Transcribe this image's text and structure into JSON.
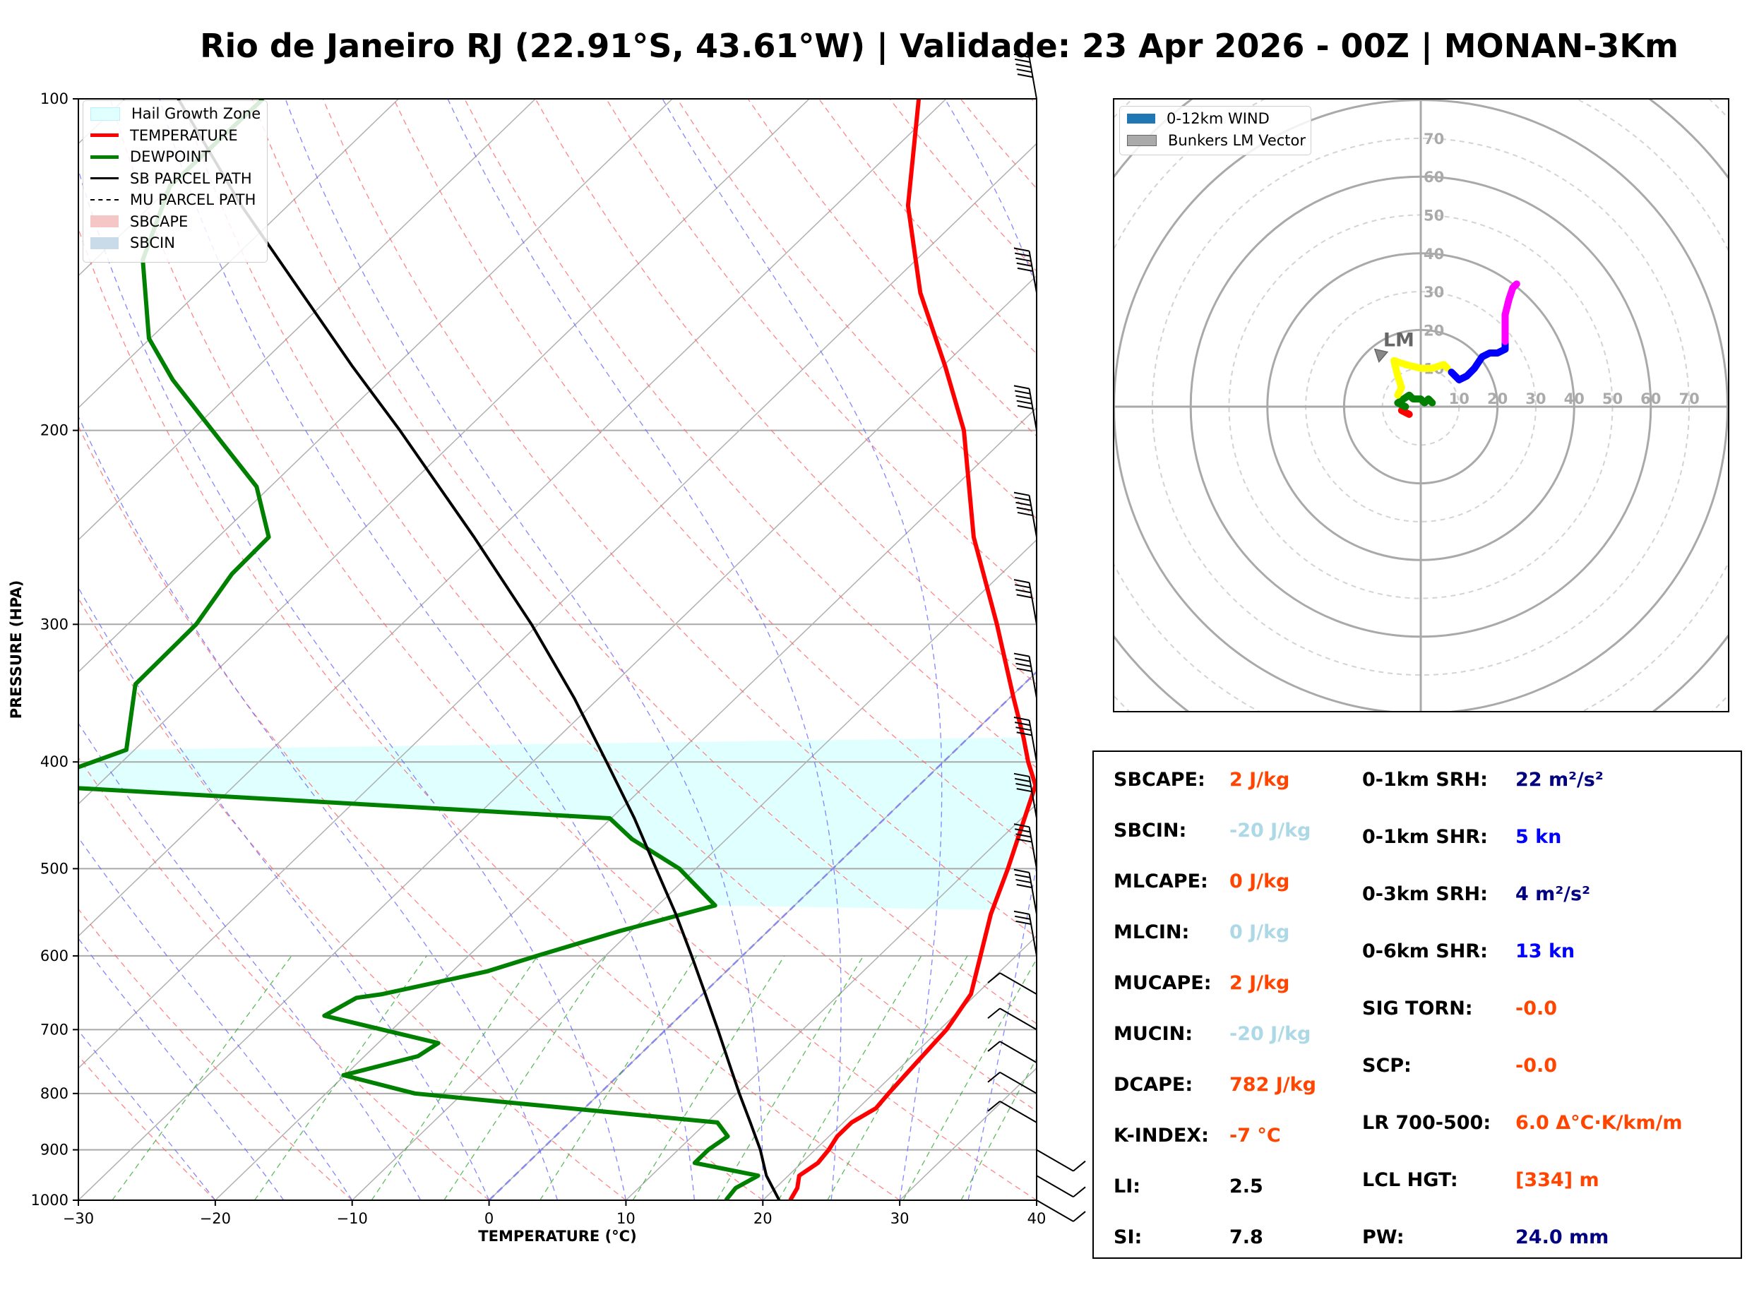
{
  "title": "Rio de Janeiro RJ (22.91°S, 43.61°W) | Validade: 23 Apr 2026 - 00Z | MONAN-3Km",
  "chart_data": [
    {
      "type": "line",
      "chart": "skew-t log-p",
      "xlabel": "TEMPERATURE (°C)",
      "ylabel": "PRESSURE (HPA)",
      "xlim": [
        -30,
        40
      ],
      "ylim": [
        1000,
        100
      ],
      "y_scale": "log",
      "x_ticks": [
        "−30",
        "−20",
        "−10",
        "0",
        "10",
        "20",
        "30",
        "40"
      ],
      "y_ticks": [
        "1000",
        "900",
        "800",
        "700",
        "600",
        "500",
        "400",
        "300",
        "200",
        "100"
      ],
      "legend": {
        "position": "top-left",
        "entries": [
          {
            "label": "Hail Growth Zone",
            "color": "#e0ffff"
          },
          {
            "label": "TEMPERATURE",
            "color": "#ff0000"
          },
          {
            "label": "DEWPOINT",
            "color": "#008000"
          },
          {
            "label": "SB PARCEL PATH",
            "color": "#000000"
          },
          {
            "label": "MU PARCEL PATH",
            "color": "#000000",
            "dashed": true
          },
          {
            "label": "SBCAPE",
            "color": "#f4c6c6"
          },
          {
            "label": "SBCIN",
            "color": "#c9dbe9"
          }
        ]
      },
      "series": [
        {
          "name": "TEMPERATURE",
          "color": "#ff0000",
          "points": [
            [
              1000,
              22.0
            ],
            [
              975,
              21.6
            ],
            [
              950,
              20.8
            ],
            [
              925,
              21.2
            ],
            [
              900,
              21.0
            ],
            [
              875,
              20.6
            ],
            [
              850,
              20.6
            ],
            [
              825,
              21.3
            ],
            [
              800,
              21.1
            ],
            [
              750,
              20.8
            ],
            [
              700,
              20.5
            ],
            [
              650,
              19.6
            ],
            [
              600,
              17.4
            ],
            [
              550,
              15.0
            ],
            [
              500,
              12.8
            ],
            [
              450,
              10.2
            ],
            [
              420,
              8.5
            ],
            [
              400,
              6.2
            ],
            [
              380,
              4.0
            ],
            [
              350,
              0.3
            ],
            [
              300,
              -6.5
            ],
            [
              250,
              -14.8
            ],
            [
              200,
              -23.6
            ],
            [
              175,
              -29.8
            ],
            [
              150,
              -37.2
            ],
            [
              125,
              -44.7
            ],
            [
              100,
              -52.0
            ]
          ]
        },
        {
          "name": "DEWPOINT",
          "color": "#008000",
          "points": [
            [
              1000,
              17.3
            ],
            [
              975,
              17.1
            ],
            [
              950,
              17.8
            ],
            [
              925,
              12.2
            ],
            [
              900,
              12.2
            ],
            [
              875,
              12.6
            ],
            [
              850,
              10.8
            ],
            [
              800,
              -13.5
            ],
            [
              770,
              -20.1
            ],
            [
              740,
              -16.1
            ],
            [
              720,
              -15.6
            ],
            [
              680,
              -26.0
            ],
            [
              655,
              -25.0
            ],
            [
              650,
              -23.4
            ],
            [
              620,
              -17.5
            ],
            [
              600,
              -15.0
            ],
            [
              570,
              -10.9
            ],
            [
              540,
              -5.8
            ],
            [
              500,
              -11.2
            ],
            [
              470,
              -16.9
            ],
            [
              450,
              -20.1
            ],
            [
              420,
              -65.1
            ],
            [
              390,
              -60.6
            ],
            [
              340,
              -64.9
            ],
            [
              300,
              -65.0
            ],
            [
              270,
              -66.2
            ],
            [
              250,
              -66.3
            ],
            [
              225,
              -71.0
            ],
            [
              200,
              -78.5
            ],
            [
              180,
              -85.2
            ],
            [
              165,
              -90.1
            ],
            [
              140,
              -96.5
            ],
            [
              120,
              -100.1
            ],
            [
              100,
              -99.9
            ]
          ]
        },
        {
          "name": "SB PARCEL PATH",
          "color": "#000000",
          "points": [
            [
              1000,
              21.2
            ],
            [
              950,
              18.4
            ],
            [
              900,
              16.0
            ],
            [
              850,
              13.2
            ],
            [
              800,
              10.2
            ],
            [
              750,
              7.1
            ],
            [
              700,
              3.8
            ],
            [
              650,
              0.2
            ],
            [
              600,
              -3.7
            ],
            [
              550,
              -8.0
            ],
            [
              500,
              -12.9
            ],
            [
              450,
              -18.3
            ],
            [
              400,
              -24.6
            ],
            [
              350,
              -31.8
            ],
            [
              300,
              -40.5
            ],
            [
              250,
              -51.3
            ],
            [
              200,
              -64.8
            ],
            [
              175,
              -73.1
            ],
            [
              150,
              -82.4
            ],
            [
              125,
              -93.4
            ],
            [
              100,
              -106.1
            ]
          ]
        }
      ],
      "hail_growth_zone": {
        "pressure_hpa": [
          380,
          545
        ],
        "color": "#e0ffff"
      },
      "wind_barbs": "right edge, 100–1000 hPa"
    },
    {
      "type": "hodograph",
      "legend": {
        "position": "top-left",
        "entries": [
          {
            "label": "0-12km WIND",
            "color": "#1f77b4"
          },
          {
            "label": "Bunkers LM Vector",
            "color": "#aaaaaa"
          }
        ]
      },
      "ring_labels": [
        "10",
        "20",
        "30",
        "40",
        "50",
        "60",
        "70"
      ],
      "storm_motion_label": "LM",
      "segments": [
        {
          "color": "#ff0000",
          "points": [
            [
              -3,
              -2
            ],
            [
              -5,
              -1
            ],
            [
              -4,
              0
            ]
          ]
        },
        {
          "color": "#008000",
          "points": [
            [
              -4,
              0
            ],
            [
              -6,
              1
            ],
            [
              -3,
              3
            ],
            [
              -2,
              2
            ],
            [
              0,
              2
            ],
            [
              1,
              1
            ],
            [
              2,
              2
            ],
            [
              3,
              1
            ]
          ]
        },
        {
          "color": "#ffff00",
          "points": [
            [
              -6,
              3
            ],
            [
              -5,
              5
            ],
            [
              -6,
              8
            ],
            [
              -7,
              12
            ],
            [
              -4,
              11
            ],
            [
              0,
              10
            ],
            [
              3,
              10
            ],
            [
              6,
              11
            ],
            [
              7,
              10
            ]
          ]
        },
        {
          "color": "#0000ff",
          "points": [
            [
              8,
              9
            ],
            [
              10,
              7
            ],
            [
              12,
              8
            ],
            [
              14,
              10
            ],
            [
              16,
              13
            ],
            [
              18,
              14
            ],
            [
              20,
              14
            ],
            [
              22,
              15
            ],
            [
              22,
              17
            ]
          ]
        },
        {
          "color": "#ff00ff",
          "points": [
            [
              22,
              17
            ],
            [
              22,
              20
            ],
            [
              22,
              24
            ],
            [
              23,
              28
            ],
            [
              24,
              31
            ],
            [
              25,
              32
            ]
          ]
        }
      ],
      "lm_vector": [
        -12,
        15
      ]
    }
  ],
  "params": {
    "left": [
      {
        "label": "SBCAPE:",
        "value": "2 J/kg",
        "color": "#ff4500"
      },
      {
        "label": "SBCIN:",
        "value": "-20 J/kg",
        "color": "#add8e6"
      },
      {
        "label": "MLCAPE:",
        "value": "0 J/kg",
        "color": "#ff4500"
      },
      {
        "label": "MLCIN:",
        "value": "0 J/kg",
        "color": "#add8e6"
      },
      {
        "label": "MUCAPE:",
        "value": "2 J/kg",
        "color": "#ff4500"
      },
      {
        "label": "MUCIN:",
        "value": "-20 J/kg",
        "color": "#add8e6"
      },
      {
        "label": "DCAPE:",
        "value": "782 J/kg",
        "color": "#ff4500"
      },
      {
        "label": "K-INDEX:",
        "value": "-7 °C",
        "color": "#ff4500"
      },
      {
        "label": "LI:",
        "value": "2.5",
        "color": "#000000"
      },
      {
        "label": "SI:",
        "value": "7.8",
        "color": "#000000"
      }
    ],
    "right": [
      {
        "label": "0-1km SRH:",
        "value": "22 m²/s²",
        "color": "#000080"
      },
      {
        "label": "0-1km SHR:",
        "value": "5 kn",
        "color": "#0000ff"
      },
      {
        "label": "0-3km SRH:",
        "value": "4 m²/s²",
        "color": "#000080"
      },
      {
        "label": "0-6km SHR:",
        "value": "13 kn",
        "color": "#0000ff"
      },
      {
        "label": "SIG TORN:",
        "value": "-0.0",
        "color": "#ff4500"
      },
      {
        "label": "SCP:",
        "value": "-0.0",
        "color": "#ff4500"
      },
      {
        "label": "LR 700-500:",
        "value": "6.0 Δ°C·K/km/m",
        "color": "#ff4500"
      },
      {
        "label": "LCL HGT:",
        "value": "[334] m",
        "color": "#ff4500"
      },
      {
        "label": "PW:",
        "value": "24.0 mm",
        "color": "#000080"
      }
    ]
  }
}
